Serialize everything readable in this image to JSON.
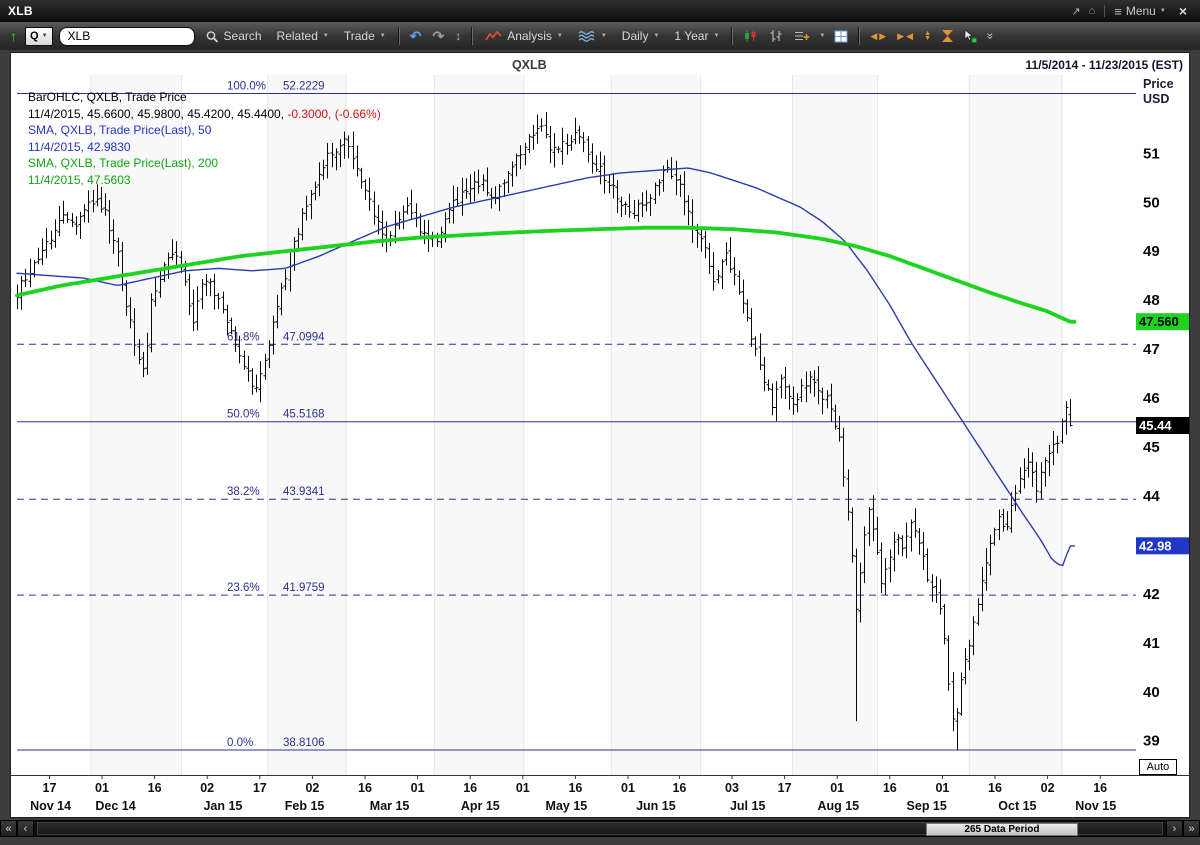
{
  "titlebar": {
    "title": "XLB",
    "menu_label": "Menu"
  },
  "icons": {
    "up_arrow": "↑",
    "caret": "▼",
    "undo": "↶",
    "redo": "↷",
    "updown": "↕",
    "external": "↗",
    "home": "⌂",
    "hamburger": "≡",
    "close": "×",
    "tri_left": "◀",
    "tri_right": "▶",
    "tri_up": "▲",
    "tri_down": "▼",
    "more": "»",
    "far_left": "«",
    "left": "‹",
    "right": "›",
    "far_right": "»"
  },
  "toolbar": {
    "symbol_button": "Q",
    "symbol_input": "XLB",
    "search_label": "Search",
    "related_label": "Related",
    "trade_label": "Trade",
    "analysis_label": "Analysis",
    "frequency_label": "Daily",
    "range_label": "1 Year"
  },
  "chart_header": {
    "title": "QXLB",
    "date_range": "11/5/2014 - 11/23/2015 (EST)"
  },
  "legend": {
    "line1": "BarOHLC, QXLB, Trade Price",
    "line2_black": "11/4/2015, 45.6600, 45.9800, 45.4200, 45.4400, ",
    "line2_red": "-0.3000, (-0.66%)",
    "line3": "SMA, QXLB, Trade Price(Last), 50",
    "line4": "11/4/2015, 42.9830",
    "line5": "SMA, QXLB, Trade Price(Last), 200",
    "line6": "11/4/2015, 47.5603"
  },
  "axis": {
    "price_label_1": "Price",
    "price_label_2": "USD"
  },
  "badges": [
    {
      "text": "47.560",
      "price": 47.5603,
      "bg": "#1ed31e",
      "fg": "#000000"
    },
    {
      "text": "45.44",
      "price": 45.44,
      "bg": "#000000",
      "fg": "#ffffff"
    },
    {
      "text": "42.98",
      "price": 42.983,
      "bg": "#2038c8",
      "fg": "#ffffff"
    }
  ],
  "auto_button": "Auto",
  "scrollbar": {
    "label": "265 Data Period"
  },
  "chart_data": {
    "type": "ohlc",
    "title": "QXLB",
    "date_range": "11/5/2014 - 11/23/2015 (EST)",
    "ylabel": "Price USD",
    "ylim": [
      38.3,
      52.6
    ],
    "y_ticks": [
      51,
      50,
      49,
      48,
      47,
      46,
      45,
      44,
      42,
      41,
      40,
      39
    ],
    "fib_levels": [
      {
        "label": "100.0%",
        "value": 52.2229,
        "style": "solid"
      },
      {
        "label": "61.8%",
        "value": 47.0994,
        "style": "dashed"
      },
      {
        "label": "50.0%",
        "value": 45.5168,
        "style": "solid"
      },
      {
        "label": "38.2%",
        "value": 43.9341,
        "style": "dashed"
      },
      {
        "label": "23.6%",
        "value": 41.9759,
        "style": "dashed"
      },
      {
        "label": "0.0%",
        "value": 38.8106,
        "style": "solid"
      }
    ],
    "x_day_ticks": [
      {
        "label": "17",
        "t": 0.029
      },
      {
        "label": "01",
        "t": 0.076
      },
      {
        "label": "16",
        "t": 0.123
      },
      {
        "label": "02",
        "t": 0.17
      },
      {
        "label": "17",
        "t": 0.217
      },
      {
        "label": "02",
        "t": 0.264
      },
      {
        "label": "16",
        "t": 0.311
      },
      {
        "label": "01",
        "t": 0.358
      },
      {
        "label": "16",
        "t": 0.405
      },
      {
        "label": "01",
        "t": 0.452
      },
      {
        "label": "16",
        "t": 0.499
      },
      {
        "label": "01",
        "t": 0.546
      },
      {
        "label": "16",
        "t": 0.592
      },
      {
        "label": "03",
        "t": 0.639
      },
      {
        "label": "17",
        "t": 0.686
      },
      {
        "label": "01",
        "t": 0.733
      },
      {
        "label": "16",
        "t": 0.78
      },
      {
        "label": "01",
        "t": 0.827
      },
      {
        "label": "16",
        "t": 0.874
      },
      {
        "label": "02",
        "t": 0.921
      },
      {
        "label": "16",
        "t": 0.968
      }
    ],
    "x_month_labels": [
      {
        "label": "Nov 14",
        "t": 0.03
      },
      {
        "label": "Dec 14",
        "t": 0.088
      },
      {
        "label": "Jan 15",
        "t": 0.184
      },
      {
        "label": "Feb 15",
        "t": 0.257
      },
      {
        "label": "Mar 15",
        "t": 0.333
      },
      {
        "label": "Apr 15",
        "t": 0.414
      },
      {
        "label": "May 15",
        "t": 0.491
      },
      {
        "label": "Jun 15",
        "t": 0.571
      },
      {
        "label": "Jul 15",
        "t": 0.653
      },
      {
        "label": "Aug 15",
        "t": 0.734
      },
      {
        "label": "Sep 15",
        "t": 0.813
      },
      {
        "label": "Oct 15",
        "t": 0.894
      },
      {
        "label": "Nov 15",
        "t": 0.964
      }
    ],
    "month_boundaries": [
      0.066,
      0.147,
      0.224,
      0.294,
      0.373,
      0.453,
      0.531,
      0.611,
      0.693,
      0.769,
      0.851,
      0.934
    ],
    "bars": {
      "count": 252,
      "t_end": 0.941,
      "color": "#0a0a0a",
      "last_bar": {
        "date": "11/4/2015",
        "open": 45.66,
        "high": 45.98,
        "low": 45.42,
        "close": 45.44
      },
      "special_lows": [
        [
          0.75,
          39.4
        ],
        [
          0.838,
          38.81
        ]
      ],
      "path_anchors": [
        [
          0,
          48.15
        ],
        [
          0.012,
          48.6
        ],
        [
          0.028,
          49.2
        ],
        [
          0.042,
          49.75
        ],
        [
          0.052,
          49.55
        ],
        [
          0.062,
          49.9
        ],
        [
          0.07,
          50.15
        ],
        [
          0.08,
          49.7
        ],
        [
          0.09,
          48.9
        ],
        [
          0.099,
          47.7
        ],
        [
          0.108,
          46.9
        ],
        [
          0.113,
          46.55
        ],
        [
          0.121,
          48.1
        ],
        [
          0.132,
          48.8
        ],
        [
          0.14,
          49.0
        ],
        [
          0.148,
          48.5
        ],
        [
          0.157,
          47.6
        ],
        [
          0.168,
          48.5
        ],
        [
          0.178,
          48.1
        ],
        [
          0.19,
          47.4
        ],
        [
          0.202,
          46.7
        ],
        [
          0.212,
          46.2
        ],
        [
          0.222,
          46.9
        ],
        [
          0.232,
          47.8
        ],
        [
          0.243,
          48.7
        ],
        [
          0.255,
          49.8
        ],
        [
          0.268,
          50.5
        ],
        [
          0.28,
          51.0
        ],
        [
          0.293,
          51.3
        ],
        [
          0.305,
          50.6
        ],
        [
          0.318,
          49.8
        ],
        [
          0.33,
          49.2
        ],
        [
          0.34,
          49.6
        ],
        [
          0.348,
          50.0
        ],
        [
          0.36,
          49.4
        ],
        [
          0.373,
          49.2
        ],
        [
          0.388,
          49.9
        ],
        [
          0.402,
          50.2
        ],
        [
          0.414,
          50.4
        ],
        [
          0.426,
          50.1
        ],
        [
          0.44,
          50.7
        ],
        [
          0.453,
          51.1
        ],
        [
          0.465,
          51.6
        ],
        [
          0.477,
          51.1
        ],
        [
          0.489,
          51.2
        ],
        [
          0.501,
          51.4
        ],
        [
          0.513,
          50.9
        ],
        [
          0.525,
          50.5
        ],
        [
          0.537,
          50.1
        ],
        [
          0.549,
          49.8
        ],
        [
          0.56,
          50.0
        ],
        [
          0.571,
          50.3
        ],
        [
          0.58,
          50.8
        ],
        [
          0.592,
          50.3
        ],
        [
          0.604,
          49.4
        ],
        [
          0.613,
          49.2
        ],
        [
          0.622,
          48.4
        ],
        [
          0.633,
          48.9
        ],
        [
          0.645,
          48.2
        ],
        [
          0.656,
          47.3
        ],
        [
          0.666,
          46.5
        ],
        [
          0.675,
          45.9
        ],
        [
          0.684,
          46.4
        ],
        [
          0.695,
          45.9
        ],
        [
          0.706,
          46.4
        ],
        [
          0.716,
          46.1
        ],
        [
          0.726,
          45.9
        ],
        [
          0.734,
          45.3
        ],
        [
          0.742,
          43.8
        ],
        [
          0.75,
          41.6
        ],
        [
          0.755,
          42.9
        ],
        [
          0.761,
          43.7
        ],
        [
          0.768,
          43.0
        ],
        [
          0.772,
          42.2
        ],
        [
          0.778,
          42.7
        ],
        [
          0.785,
          43.2
        ],
        [
          0.792,
          43.0
        ],
        [
          0.799,
          43.6
        ],
        [
          0.806,
          43.1
        ],
        [
          0.813,
          42.4
        ],
        [
          0.82,
          42.0
        ],
        [
          0.827,
          41.4
        ],
        [
          0.833,
          39.9
        ],
        [
          0.838,
          39.3
        ],
        [
          0.843,
          40.2
        ],
        [
          0.849,
          40.7
        ],
        [
          0.855,
          41.4
        ],
        [
          0.862,
          42.3
        ],
        [
          0.869,
          42.9
        ],
        [
          0.876,
          43.6
        ],
        [
          0.883,
          43.2
        ],
        [
          0.89,
          44.0
        ],
        [
          0.897,
          44.4
        ],
        [
          0.904,
          44.7
        ],
        [
          0.911,
          44.2
        ],
        [
          0.918,
          44.6
        ],
        [
          0.925,
          44.9
        ],
        [
          0.93,
          45.2
        ],
        [
          0.936,
          45.8
        ],
        [
          0.941,
          45.44
        ]
      ]
    },
    "sma50": {
      "period": 50,
      "last": 42.983,
      "color": "#2b3cae",
      "anchors": [
        [
          0,
          48.55
        ],
        [
          0.03,
          48.5
        ],
        [
          0.06,
          48.45
        ],
        [
          0.09,
          48.3
        ],
        [
          0.12,
          48.45
        ],
        [
          0.15,
          48.6
        ],
        [
          0.18,
          48.65
        ],
        [
          0.21,
          48.6
        ],
        [
          0.24,
          48.65
        ],
        [
          0.27,
          48.9
        ],
        [
          0.3,
          49.2
        ],
        [
          0.33,
          49.5
        ],
        [
          0.36,
          49.7
        ],
        [
          0.39,
          49.9
        ],
        [
          0.42,
          50.05
        ],
        [
          0.45,
          50.2
        ],
        [
          0.48,
          50.35
        ],
        [
          0.51,
          50.5
        ],
        [
          0.54,
          50.6
        ],
        [
          0.57,
          50.65
        ],
        [
          0.6,
          50.7
        ],
        [
          0.62,
          50.6
        ],
        [
          0.64,
          50.45
        ],
        [
          0.66,
          50.3
        ],
        [
          0.68,
          50.1
        ],
        [
          0.7,
          49.9
        ],
        [
          0.72,
          49.6
        ],
        [
          0.74,
          49.2
        ],
        [
          0.76,
          48.6
        ],
        [
          0.78,
          47.9
        ],
        [
          0.8,
          47.1
        ],
        [
          0.82,
          46.4
        ],
        [
          0.84,
          45.7
        ],
        [
          0.86,
          45.0
        ],
        [
          0.88,
          44.3
        ],
        [
          0.9,
          43.6
        ],
        [
          0.915,
          43.1
        ],
        [
          0.925,
          42.7
        ],
        [
          0.934,
          42.55
        ],
        [
          0.941,
          42.98
        ]
      ]
    },
    "sma200": {
      "period": 200,
      "last": 47.5603,
      "color": "#1ed31e",
      "anchors": [
        [
          0,
          48.1
        ],
        [
          0.04,
          48.3
        ],
        [
          0.08,
          48.45
        ],
        [
          0.12,
          48.6
        ],
        [
          0.16,
          48.75
        ],
        [
          0.2,
          48.9
        ],
        [
          0.24,
          49.0
        ],
        [
          0.28,
          49.1
        ],
        [
          0.32,
          49.2
        ],
        [
          0.36,
          49.28
        ],
        [
          0.4,
          49.33
        ],
        [
          0.44,
          49.38
        ],
        [
          0.48,
          49.42
        ],
        [
          0.52,
          49.45
        ],
        [
          0.56,
          49.48
        ],
        [
          0.6,
          49.48
        ],
        [
          0.64,
          49.45
        ],
        [
          0.68,
          49.38
        ],
        [
          0.72,
          49.25
        ],
        [
          0.75,
          49.1
        ],
        [
          0.78,
          48.9
        ],
        [
          0.81,
          48.65
        ],
        [
          0.84,
          48.4
        ],
        [
          0.87,
          48.15
        ],
        [
          0.9,
          47.92
        ],
        [
          0.92,
          47.78
        ],
        [
          0.941,
          47.56
        ]
      ]
    }
  }
}
